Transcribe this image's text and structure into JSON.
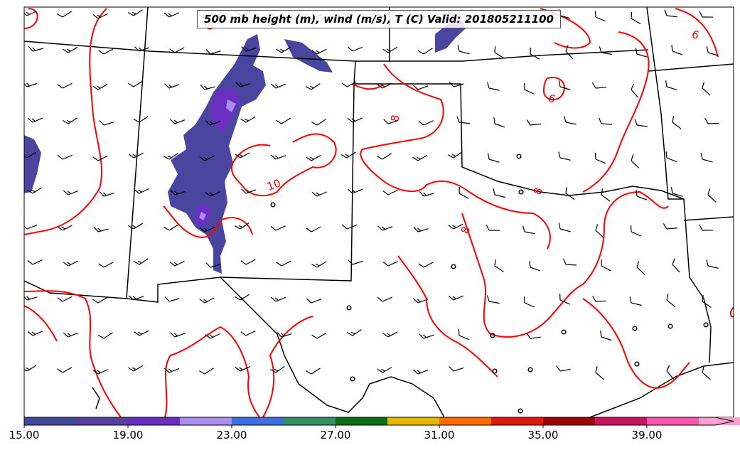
{
  "title": "500 mb height (m), wind (m/s), T (C) Valid: 201805211100",
  "colorbar": {
    "tick_labels": [
      "15.00",
      "19.00",
      "23.00",
      "27.00",
      "31.00",
      "35.00",
      "39.00"
    ],
    "colors": [
      "#3f4a9c",
      "#55409e",
      "#6a2fc0",
      "#a98ef0",
      "#3d6fe0",
      "#2f9162",
      "#0a6e14",
      "#e6b800",
      "#ff6a00",
      "#dd1a0a",
      "#9c0000",
      "#c8145a",
      "#ff55aa",
      "#ff9fd0"
    ]
  },
  "contours": {
    "color": "#ff0000",
    "labels": [
      "10",
      "8",
      "8",
      "6",
      "6",
      "6",
      "8"
    ]
  }
}
